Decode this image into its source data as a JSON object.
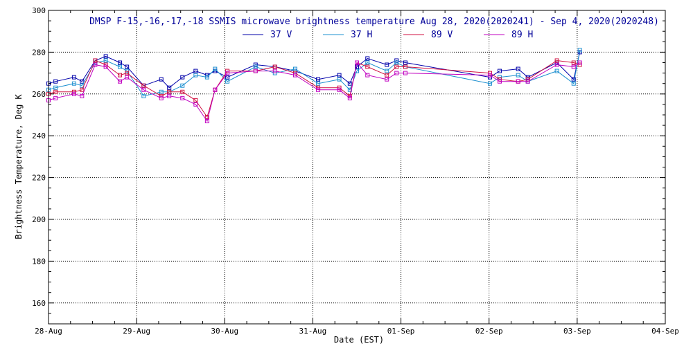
{
  "chart_data": {
    "type": "line",
    "title": "DMSP F-15,-16,-17,-18 SSMIS microwave brightness temperature Aug 28, 2020(2020241) - Sep  4, 2020(2020248)",
    "xlabel": "Date (EST)",
    "ylabel": "Brightness Temperature, Deg K",
    "xlim": [
      0,
      7
    ],
    "ylim": [
      150,
      300
    ],
    "x_ticks": [
      "28-Aug",
      "29-Aug",
      "30-Aug",
      "31-Aug",
      "01-Sep",
      "02-Sep",
      "03-Sep",
      "04-Sep"
    ],
    "y_ticks": [
      160,
      180,
      200,
      220,
      240,
      260,
      280,
      300
    ],
    "grid": true,
    "legend_position": "top",
    "x": [
      0.0,
      0.08,
      0.29,
      0.38,
      0.53,
      0.65,
      0.81,
      0.89,
      1.08,
      1.28,
      1.37,
      1.52,
      1.67,
      1.8,
      1.89,
      2.03,
      2.35,
      2.57,
      2.8,
      3.06,
      3.3,
      3.42,
      3.5,
      3.62,
      3.84,
      3.95,
      4.05,
      5.01,
      5.12,
      5.33,
      5.44,
      5.77,
      5.96,
      6.03
    ],
    "series": [
      {
        "name": "37 V",
        "color": "#0000aa",
        "values": [
          265,
          266,
          268,
          266,
          276,
          278,
          275,
          273,
          264,
          267,
          263,
          268,
          271,
          269,
          271,
          268,
          274,
          273,
          271,
          267,
          269,
          265,
          273,
          277,
          274,
          276,
          275,
          268,
          271,
          272,
          268,
          275,
          267,
          280
        ]
      },
      {
        "name": "37 H",
        "color": "#1e90d0",
        "values": [
          262,
          263,
          265,
          264,
          275,
          276,
          273,
          271,
          259,
          261,
          261,
          264,
          269,
          268,
          272,
          266,
          273,
          270,
          272,
          265,
          267,
          262,
          271,
          275,
          271,
          275,
          273,
          265,
          268,
          269,
          266,
          271,
          265,
          281
        ]
      },
      {
        "name": "89 V",
        "color": "#d01040",
        "values": [
          260,
          261,
          261,
          262,
          276,
          274,
          269,
          270,
          264,
          259,
          261,
          261,
          257,
          249,
          262,
          271,
          271,
          273,
          270,
          263,
          263,
          259,
          275,
          273,
          269,
          273,
          273,
          270,
          267,
          266,
          267,
          276,
          275,
          274
        ]
      },
      {
        "name": "89 H",
        "color": "#c000c0",
        "values": [
          257,
          258,
          260,
          259,
          274,
          273,
          266,
          268,
          262,
          258,
          259,
          258,
          255,
          247,
          262,
          270,
          271,
          271,
          269,
          262,
          262,
          258,
          275,
          269,
          267,
          270,
          270,
          269,
          266,
          266,
          266,
          274,
          273,
          275
        ]
      }
    ]
  }
}
